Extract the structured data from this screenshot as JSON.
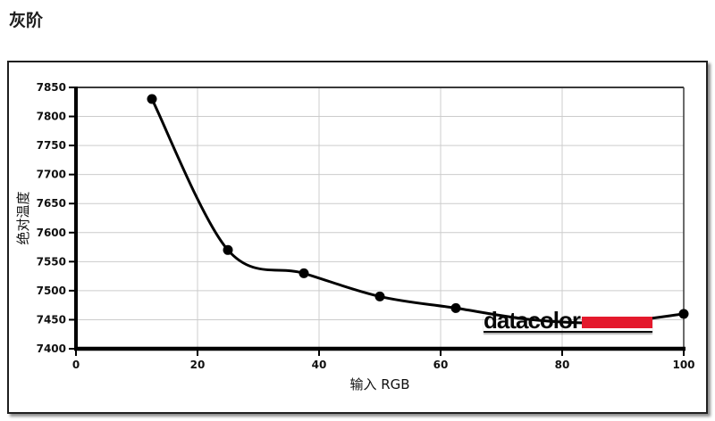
{
  "page": {
    "title": "灰阶"
  },
  "watermark": {
    "text": "datacolor",
    "accent_color": "#e4192c"
  },
  "chart_data": {
    "type": "line",
    "title": "灰阶",
    "xlabel": "输入 RGB",
    "ylabel": "绝对温度",
    "xlim": [
      0,
      100
    ],
    "ylim": [
      7400,
      7850
    ],
    "x_ticks": [
      0,
      20,
      40,
      60,
      80,
      100
    ],
    "y_ticks": [
      7400,
      7450,
      7500,
      7550,
      7600,
      7650,
      7700,
      7750,
      7800,
      7850
    ],
    "grid": true,
    "legend": "none",
    "line_color": "#000000",
    "marker": "circle",
    "marker_color": "#000000",
    "series": [
      {
        "name": "绝对温度",
        "points": [
          {
            "x": 12.5,
            "y": 7830
          },
          {
            "x": 25,
            "y": 7570
          },
          {
            "x": 37.5,
            "y": 7530
          },
          {
            "x": 50,
            "y": 7490
          },
          {
            "x": 62.5,
            "y": 7470
          },
          {
            "x": 75,
            "y": 7450,
            "occluded_by_watermark": true
          },
          {
            "x": 87.5,
            "y": 7445,
            "occluded_by_watermark": true
          },
          {
            "x": 100,
            "y": 7460
          }
        ]
      }
    ]
  }
}
